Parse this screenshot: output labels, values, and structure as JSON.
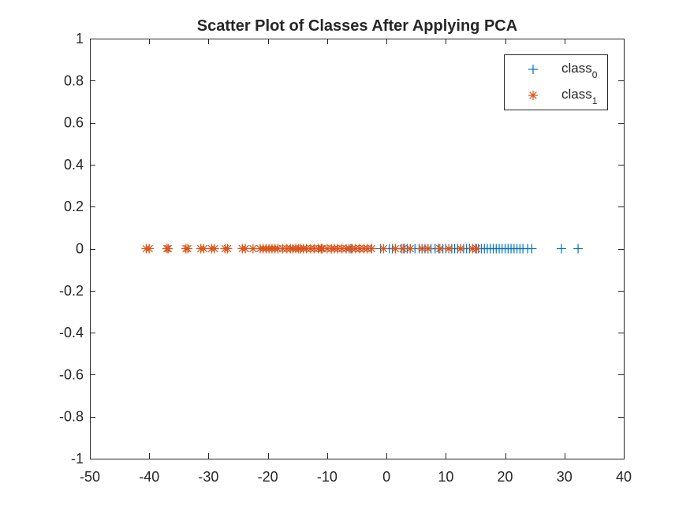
{
  "chart_data": {
    "type": "scatter",
    "title": "Scatter Plot of Classes After Applying PCA",
    "xlabel": "",
    "ylabel": "",
    "xlim": [
      -50,
      40
    ],
    "ylim": [
      -1,
      1
    ],
    "x_ticks": [
      -50,
      -40,
      -30,
      -20,
      -10,
      0,
      10,
      20,
      30,
      40
    ],
    "y_ticks": [
      -1,
      -0.8,
      -0.6,
      -0.4,
      -0.2,
      0,
      0.2,
      0.4,
      0.6,
      0.8,
      1
    ],
    "grid": false,
    "box": true,
    "legend_position": "top-right",
    "series": [
      {
        "name": "class",
        "name_subscript": "0",
        "marker": "plus",
        "color": "#0072BD",
        "points": [
          [
            -11,
            0
          ],
          [
            -6,
            0
          ],
          [
            -4.5,
            0
          ],
          [
            -2.5,
            0
          ],
          [
            -1,
            0
          ],
          [
            0.5,
            0
          ],
          [
            1,
            0
          ],
          [
            1.5,
            0
          ],
          [
            2.5,
            0
          ],
          [
            3,
            0
          ],
          [
            3.5,
            0
          ],
          [
            4,
            0
          ],
          [
            4.8,
            0
          ],
          [
            5.5,
            0
          ],
          [
            6,
            0
          ],
          [
            6.5,
            0
          ],
          [
            7,
            0
          ],
          [
            7.5,
            0
          ],
          [
            8.2,
            0
          ],
          [
            8.8,
            0
          ],
          [
            9.5,
            0
          ],
          [
            10,
            0
          ],
          [
            10.5,
            0
          ],
          [
            11,
            0
          ],
          [
            11.5,
            0
          ],
          [
            12,
            0
          ],
          [
            12.5,
            0
          ],
          [
            13,
            0
          ],
          [
            13.5,
            0
          ],
          [
            14,
            0
          ],
          [
            14.5,
            0
          ],
          [
            15,
            0
          ],
          [
            15.5,
            0
          ],
          [
            16,
            0
          ],
          [
            16.5,
            0
          ],
          [
            17,
            0
          ],
          [
            17.5,
            0
          ],
          [
            18,
            0
          ],
          [
            18.5,
            0
          ],
          [
            19,
            0
          ],
          [
            19.5,
            0
          ],
          [
            20,
            0
          ],
          [
            20.5,
            0
          ],
          [
            21,
            0
          ],
          [
            21.5,
            0
          ],
          [
            22,
            0
          ],
          [
            22.5,
            0
          ],
          [
            23,
            0
          ],
          [
            23.8,
            0
          ],
          [
            24.5,
            0
          ],
          [
            29.5,
            0
          ],
          [
            32.3,
            0
          ]
        ]
      },
      {
        "name": "class",
        "name_subscript": "1",
        "marker": "asterisk",
        "color": "#D95319",
        "points": [
          [
            -40.5,
            0
          ],
          [
            -40,
            0
          ],
          [
            -37,
            0
          ],
          [
            -36.8,
            0
          ],
          [
            -33.8,
            0
          ],
          [
            -33.5,
            0
          ],
          [
            -31.3,
            0
          ],
          [
            -30.8,
            0
          ],
          [
            -29.5,
            0
          ],
          [
            -29,
            0
          ],
          [
            -27.2,
            0
          ],
          [
            -26.8,
            0
          ],
          [
            -24.3,
            0
          ],
          [
            -23.8,
            0
          ],
          [
            -22.5,
            0
          ],
          [
            -21.3,
            0
          ],
          [
            -20.8,
            0
          ],
          [
            -20.3,
            0
          ],
          [
            -19.8,
            0
          ],
          [
            -19.3,
            0
          ],
          [
            -18.8,
            0
          ],
          [
            -18.3,
            0
          ],
          [
            -17.5,
            0
          ],
          [
            -16.8,
            0
          ],
          [
            -16.2,
            0
          ],
          [
            -15.8,
            0
          ],
          [
            -15.3,
            0
          ],
          [
            -14.8,
            0
          ],
          [
            -14.5,
            0
          ],
          [
            -14,
            0
          ],
          [
            -13.5,
            0
          ],
          [
            -12.8,
            0
          ],
          [
            -12.2,
            0
          ],
          [
            -11.5,
            0
          ],
          [
            -11,
            0
          ],
          [
            -10.8,
            0
          ],
          [
            -10,
            0
          ],
          [
            -9.3,
            0
          ],
          [
            -8.8,
            0
          ],
          [
            -8.2,
            0
          ],
          [
            -7.5,
            0
          ],
          [
            -6.8,
            0
          ],
          [
            -6.3,
            0
          ],
          [
            -5.8,
            0
          ],
          [
            -5.2,
            0
          ],
          [
            -4.5,
            0
          ],
          [
            -3.8,
            0
          ],
          [
            -3.2,
            0
          ],
          [
            -2.5,
            0
          ],
          [
            -0.5,
            0
          ],
          [
            1.5,
            0
          ],
          [
            2.8,
            0
          ],
          [
            4,
            0
          ],
          [
            6,
            0
          ],
          [
            7,
            0
          ],
          [
            9,
            0
          ],
          [
            10.5,
            0
          ],
          [
            12.5,
            0
          ],
          [
            14.5,
            0
          ],
          [
            15.2,
            0
          ]
        ]
      }
    ]
  }
}
